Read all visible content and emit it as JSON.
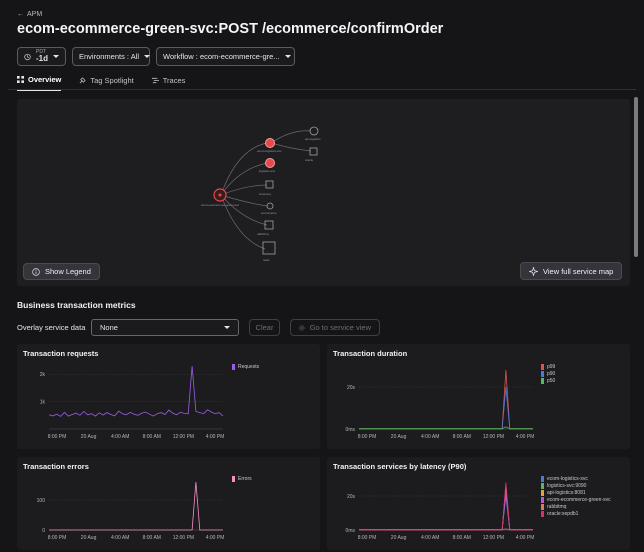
{
  "header": {
    "back_label": "APM",
    "title": "ecom-ecommerce-green-svc:POST /ecommerce/confirmOrder"
  },
  "controls": {
    "time_prefix": "PDT",
    "time_value": "-1d",
    "environments": "Environments : All",
    "workflow": "Workflow : ecom-ecommerce-gre..."
  },
  "tabs": [
    {
      "label": "Overview",
      "icon": "grid-icon"
    },
    {
      "label": "Tag Spotlight",
      "icon": "spotlight-icon"
    },
    {
      "label": "Traces",
      "icon": "traces-icon"
    }
  ],
  "service_map": {
    "show_legend_label": "Show Legend",
    "view_full_label": "View full service map",
    "nodes": [
      {
        "label": "ecom-ecommerce-green-svc",
        "status": "error"
      },
      {
        "label": "ecom-logistics-svc",
        "status": "error"
      },
      {
        "label": "logistics-svc",
        "status": "error"
      },
      {
        "label": "api-logistics",
        "status": "ok"
      },
      {
        "label": "oracle",
        "status": "ok"
      },
      {
        "label": "inventory",
        "status": "ok"
      },
      {
        "label": "ecommerce",
        "status": "ok"
      },
      {
        "label": "rabbitmq",
        "status": "ok"
      },
      {
        "label": "redis",
        "status": "ok"
      }
    ]
  },
  "metrics": {
    "section_title": "Business transaction metrics",
    "overlay_label": "Overlay service data",
    "overlay_value": "None",
    "clear_label": "Clear",
    "goto_label": "Go to service view"
  },
  "chart_data": [
    {
      "type": "line",
      "title": "Transaction requests",
      "x_ticks": [
        "8:00 PM",
        "20 Aug",
        "4:00 AM",
        "8:00 AM",
        "12:00 PM",
        "4:00 PM"
      ],
      "y_ticks": [
        "2k",
        "1k"
      ],
      "ylim": [
        0,
        2300
      ],
      "series": [
        {
          "name": "Requests",
          "color": "#9b5de5",
          "values": [
            520,
            480,
            540,
            460,
            610,
            470,
            530,
            580,
            500,
            640,
            520,
            560,
            470,
            590,
            510,
            600,
            530,
            480,
            650,
            560,
            520,
            610,
            540,
            500,
            580,
            620,
            540,
            470,
            560,
            600,
            530,
            690,
            580,
            520,
            610,
            570,
            560,
            2300,
            640,
            600,
            560,
            700,
            620,
            560,
            600,
            470
          ]
        }
      ]
    },
    {
      "type": "line",
      "title": "Transaction duration",
      "x_ticks": [
        "8:00 PM",
        "20 Aug",
        "4:00 AM",
        "8:00 AM",
        "12:00 PM",
        "4:00 PM"
      ],
      "y_ticks": [
        "20s",
        "0ms"
      ],
      "ylim": [
        0,
        30
      ],
      "series": [
        {
          "name": "p99",
          "color": "#e05252",
          "values": [
            0,
            0,
            0,
            0,
            0,
            0,
            0,
            0,
            0,
            0,
            0,
            0,
            0,
            0,
            0,
            0,
            0,
            0,
            0,
            0,
            0,
            0,
            0,
            0,
            0,
            0,
            0,
            0,
            0,
            0,
            0,
            0,
            0,
            0,
            0,
            0,
            0,
            0,
            28,
            0,
            0,
            0,
            0,
            0,
            0,
            0
          ]
        },
        {
          "name": "p90",
          "color": "#4e79d8",
          "values": [
            0,
            0,
            0,
            0,
            0,
            0,
            0,
            0,
            0,
            0,
            0,
            0,
            0,
            0,
            0,
            0,
            0,
            0,
            0,
            0,
            0,
            0,
            0,
            0,
            0,
            0,
            0,
            0,
            0,
            0,
            0,
            0,
            0,
            0,
            0,
            0,
            0,
            0,
            20,
            0,
            0,
            0,
            0,
            0,
            0,
            0
          ]
        },
        {
          "name": "p50",
          "color": "#5cb85c",
          "values": [
            0.2,
            0.2,
            0.2,
            0.2,
            0.2,
            0.2,
            0.2,
            0.2,
            0.2,
            0.2,
            0.2,
            0.2,
            0.2,
            0.2,
            0.2,
            0.2,
            0.2,
            0.2,
            0.2,
            0.2,
            0.2,
            0.2,
            0.2,
            0.2,
            0.2,
            0.2,
            0.2,
            0.2,
            0.2,
            0.2,
            0.2,
            0.2,
            0.2,
            0.2,
            0.2,
            0.2,
            0.2,
            0.2,
            1,
            0.2,
            0.2,
            0.2,
            0.2,
            0.2,
            0.2,
            0.2
          ]
        }
      ]
    },
    {
      "type": "line",
      "title": "Transaction errors",
      "x_ticks": [
        "8:00 PM",
        "20 Aug",
        "4:00 AM",
        "8:00 AM",
        "12:00 PM",
        "4:00 PM"
      ],
      "y_ticks": [
        "100",
        "0"
      ],
      "ylim": [
        0,
        170
      ],
      "series": [
        {
          "name": "Errors",
          "color": "#f58fc4",
          "values": [
            0,
            0,
            0,
            0,
            0,
            0,
            0,
            0,
            0,
            0,
            0,
            0,
            0,
            0,
            0,
            0,
            0,
            0,
            0,
            0,
            0,
            0,
            0,
            0,
            0,
            0,
            0,
            0,
            0,
            0,
            0,
            0,
            0,
            0,
            0,
            0,
            0,
            0,
            160,
            0,
            0,
            0,
            0,
            0,
            0,
            0
          ]
        }
      ]
    },
    {
      "type": "line",
      "title": "Transaction services by latency (P90)",
      "x_ticks": [
        "8:00 PM",
        "20 Aug",
        "4:00 AM",
        "8:00 AM",
        "12:00 PM",
        "4:00 PM"
      ],
      "y_ticks": [
        "20s",
        "0ms"
      ],
      "ylim": [
        0,
        30
      ],
      "series": [
        {
          "name": "ecom-logistics-svc",
          "color": "#4e79d8",
          "values": [
            0,
            0,
            0,
            0,
            0,
            0,
            0,
            0,
            0,
            0,
            0,
            0,
            0,
            0,
            0,
            0,
            0,
            0,
            0,
            0,
            0,
            0,
            0,
            0,
            0,
            0,
            0,
            0,
            0,
            0,
            0,
            0,
            0,
            0,
            0,
            0,
            0,
            0,
            20,
            0,
            0,
            0,
            0,
            0,
            0,
            0
          ]
        },
        {
          "name": "logistics-svc:9090",
          "color": "#5cb85c",
          "values": [
            0,
            0,
            0,
            0,
            0,
            0,
            0,
            0,
            0,
            0,
            0,
            0,
            0,
            0,
            0,
            0,
            0,
            0,
            0,
            0,
            0,
            0,
            0,
            0,
            0,
            0,
            0,
            0,
            0,
            0,
            0,
            0,
            0,
            0,
            0,
            0,
            0,
            0,
            24,
            0,
            0,
            0,
            0,
            0,
            0,
            0
          ]
        },
        {
          "name": "api-logistics:8081",
          "color": "#e3a33b",
          "values": [
            0,
            0,
            0,
            0,
            0,
            0,
            0,
            0,
            0,
            0,
            0,
            0,
            0,
            0,
            0,
            0,
            0,
            0,
            0,
            0,
            0,
            0,
            0,
            0,
            0,
            0,
            0,
            0,
            0,
            0,
            0,
            0,
            0,
            0,
            0,
            0,
            0,
            0,
            26,
            0,
            0,
            0,
            0,
            0,
            0,
            0
          ]
        },
        {
          "name": "ecom-ecommerce-green-svc",
          "color": "#b35cd6",
          "values": [
            0,
            0,
            0,
            0,
            0,
            0,
            0,
            0,
            0,
            0,
            0,
            0,
            0,
            0,
            0,
            0,
            0,
            0,
            0,
            0,
            0,
            0,
            0,
            0,
            0,
            0,
            0,
            0,
            0,
            0,
            0,
            0,
            0,
            0,
            0,
            0,
            0,
            0,
            22,
            0,
            0,
            0,
            0,
            0,
            0,
            0
          ]
        },
        {
          "name": "rabbitmq",
          "color": "#e07a5f",
          "values": [
            0.3,
            0.3,
            0.3,
            0.3,
            0.3,
            0.3,
            0.3,
            0.3,
            0.3,
            0.3,
            0.3,
            0.3,
            0.3,
            0.3,
            0.3,
            0.3,
            0.3,
            0.3,
            0.3,
            0.3,
            0.3,
            0.3,
            0.3,
            0.3,
            0.3,
            0.3,
            0.3,
            0.3,
            0.3,
            0.3,
            0.3,
            0.3,
            0.3,
            0.3,
            0.3,
            0.3,
            0.3,
            0.3,
            0.6,
            0.3,
            0.3,
            0.3,
            0.3,
            0.3,
            0.3,
            0.3
          ]
        },
        {
          "name": "oracle:xepdb1",
          "color": "#d6336c",
          "values": [
            0,
            0,
            0,
            0,
            0,
            0,
            0,
            0,
            0,
            0,
            0,
            0,
            0,
            0,
            0,
            0,
            0,
            0,
            0,
            0,
            0,
            0,
            0,
            0,
            0,
            0,
            0,
            0,
            0,
            0,
            0,
            0,
            0,
            0,
            0,
            0,
            0,
            0,
            28,
            0,
            0,
            0,
            0,
            0,
            0,
            0
          ]
        }
      ]
    }
  ]
}
